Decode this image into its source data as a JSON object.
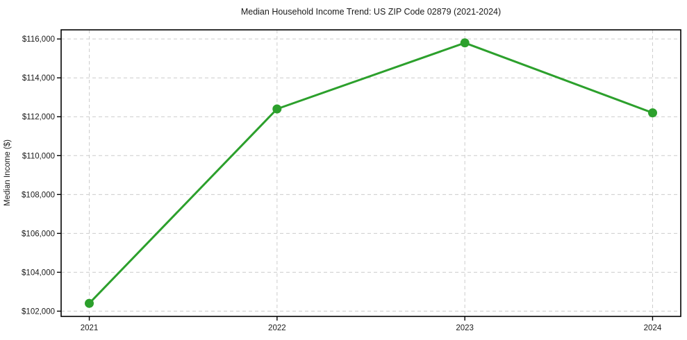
{
  "chart_data": {
    "type": "line",
    "title": "Median Household Income Trend: US ZIP Code 02879 (2021-2024)",
    "xlabel": "",
    "ylabel": "Median Income ($)",
    "categories": [
      "2021",
      "2022",
      "2023",
      "2024"
    ],
    "values": [
      102400,
      112400,
      115800,
      112200
    ],
    "ylim": [
      101730,
      116470
    ],
    "yticks": [
      102000,
      104000,
      106000,
      108000,
      110000,
      112000,
      114000,
      116000
    ],
    "ytick_labels": [
      "$102,000",
      "$104,000",
      "$106,000",
      "$108,000",
      "$110,000",
      "$112,000",
      "$114,000",
      "$116,000"
    ],
    "grid": true,
    "grid_style": "dashed",
    "legend_position": "none",
    "line_color": "#2ca02c",
    "marker": "circle",
    "background_color": "#ffffff",
    "grid_color": "#cccccc",
    "spine_color": "#000000",
    "text_color": "#1a1a1a"
  }
}
